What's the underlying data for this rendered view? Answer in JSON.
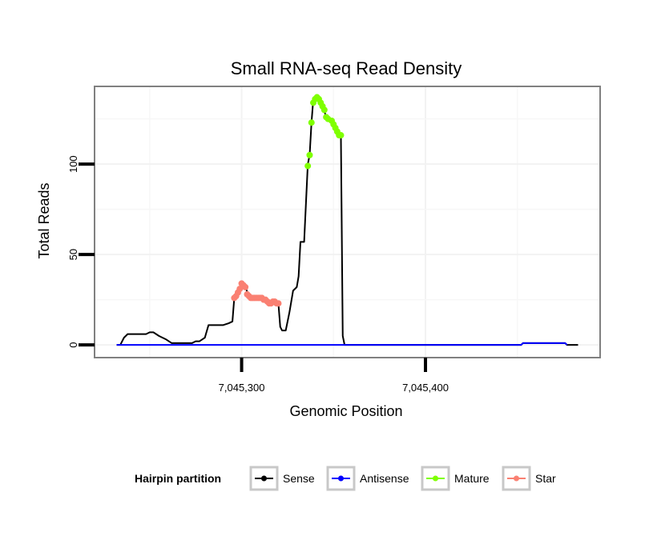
{
  "chart_data": {
    "type": "line",
    "title": "Small RNA-seq Read Density",
    "xlabel": "Genomic Position",
    "ylabel": "Total Reads",
    "xlim": [
      7045220,
      7045495
    ],
    "ylim": [
      -7,
      143
    ],
    "x_ticks": [
      {
        "value": 7045300,
        "label": "7,045,300"
      },
      {
        "value": 7045400,
        "label": "7,045,400"
      }
    ],
    "y_ticks": [
      {
        "value": 0,
        "label": "0"
      },
      {
        "value": 50,
        "label": "50"
      },
      {
        "value": 100,
        "label": "100"
      }
    ],
    "x_minor_grid": [
      7045250,
      7045350,
      7045450
    ],
    "y_minor_grid": [
      25,
      75,
      125
    ],
    "legend": {
      "title": "Hairpin partition",
      "placement": "bottom",
      "items": [
        {
          "name": "Sense",
          "color": "#000000"
        },
        {
          "name": "Antisense",
          "color": "#0000ff"
        },
        {
          "name": "Mature",
          "color": "#7fff00"
        },
        {
          "name": "Star",
          "color": "#fa8072"
        }
      ]
    },
    "series": [
      {
        "name": "Sense",
        "color": "#000000",
        "mark": "line",
        "points": [
          [
            7045232,
            0
          ],
          [
            7045234,
            0
          ],
          [
            7045236,
            4
          ],
          [
            7045238,
            6
          ],
          [
            7045240,
            6
          ],
          [
            7045244,
            6
          ],
          [
            7045248,
            6
          ],
          [
            7045250,
            7
          ],
          [
            7045252,
            7
          ],
          [
            7045255,
            5
          ],
          [
            7045257,
            4
          ],
          [
            7045259,
            3
          ],
          [
            7045262,
            1
          ],
          [
            7045264,
            1
          ],
          [
            7045266,
            1
          ],
          [
            7045270,
            1
          ],
          [
            7045273,
            1
          ],
          [
            7045275,
            2
          ],
          [
            7045277,
            2
          ],
          [
            7045280,
            4
          ],
          [
            7045282,
            11
          ],
          [
            7045284,
            11
          ],
          [
            7045287,
            11
          ],
          [
            7045290,
            11
          ],
          [
            7045293,
            12
          ],
          [
            7045295,
            13
          ],
          [
            7045296,
            26
          ],
          [
            7045298,
            28
          ],
          [
            7045300,
            34
          ],
          [
            7045302,
            32
          ],
          [
            7045304,
            27
          ],
          [
            7045306,
            27
          ],
          [
            7045310,
            26
          ],
          [
            7045314,
            24
          ],
          [
            7045316,
            23
          ],
          [
            7045318,
            24
          ],
          [
            7045320,
            23
          ],
          [
            7045321,
            10
          ],
          [
            7045322,
            8
          ],
          [
            7045324,
            8
          ],
          [
            7045326,
            18
          ],
          [
            7045328,
            30
          ],
          [
            7045330,
            32
          ],
          [
            7045331,
            38
          ],
          [
            7045332,
            57
          ],
          [
            7045334,
            57
          ],
          [
            7045336,
            100
          ],
          [
            7045337,
            105
          ],
          [
            7045338,
            123
          ],
          [
            7045339,
            136
          ],
          [
            7045341,
            137
          ],
          [
            7045343,
            134
          ],
          [
            7045345,
            129
          ],
          [
            7045347,
            124
          ],
          [
            7045349,
            123
          ],
          [
            7045351,
            120
          ],
          [
            7045353,
            116
          ],
          [
            7045354,
            116
          ],
          [
            7045355,
            5
          ],
          [
            7045356,
            0
          ],
          [
            7045380,
            0
          ],
          [
            7045420,
            0
          ],
          [
            7045440,
            0
          ],
          [
            7045452,
            0
          ],
          [
            7045453,
            1
          ],
          [
            7045470,
            1
          ],
          [
            7045476,
            1
          ],
          [
            7045477,
            0
          ],
          [
            7045483,
            0
          ]
        ]
      },
      {
        "name": "Antisense",
        "color": "#0000ff",
        "mark": "line",
        "points": [
          [
            7045232,
            0
          ],
          [
            7045356,
            0
          ],
          [
            7045452,
            0
          ],
          [
            7045453,
            1
          ],
          [
            7045476,
            1
          ],
          [
            7045477,
            0
          ]
        ]
      },
      {
        "name": "Mature",
        "color": "#7fff00",
        "mark": "points",
        "points": [
          [
            7045336,
            99
          ],
          [
            7045337,
            105
          ],
          [
            7045338,
            123
          ],
          [
            7045339,
            134
          ],
          [
            7045340,
            136
          ],
          [
            7045341,
            137
          ],
          [
            7045342,
            136
          ],
          [
            7045343,
            134
          ],
          [
            7045344,
            132
          ],
          [
            7045345,
            130
          ],
          [
            7045346,
            126
          ],
          [
            7045347,
            125
          ],
          [
            7045349,
            124
          ],
          [
            7045350,
            122
          ],
          [
            7045351,
            120
          ],
          [
            7045352,
            118
          ],
          [
            7045353,
            116
          ],
          [
            7045354,
            116
          ]
        ]
      },
      {
        "name": "Star",
        "color": "#fa8072",
        "mark": "points",
        "points": [
          [
            7045296,
            26
          ],
          [
            7045297,
            27
          ],
          [
            7045298,
            29
          ],
          [
            7045299,
            31
          ],
          [
            7045300,
            34
          ],
          [
            7045301,
            33
          ],
          [
            7045302,
            32
          ],
          [
            7045303,
            28
          ],
          [
            7045304,
            27
          ],
          [
            7045305,
            26
          ],
          [
            7045306,
            26
          ],
          [
            7045307,
            26
          ],
          [
            7045308,
            26
          ],
          [
            7045309,
            26
          ],
          [
            7045310,
            26
          ],
          [
            7045311,
            26
          ],
          [
            7045312,
            25
          ],
          [
            7045313,
            25
          ],
          [
            7045314,
            24
          ],
          [
            7045315,
            23
          ],
          [
            7045316,
            23
          ],
          [
            7045317,
            24
          ],
          [
            7045318,
            24
          ],
          [
            7045319,
            23
          ],
          [
            7045320,
            23
          ]
        ]
      }
    ]
  }
}
